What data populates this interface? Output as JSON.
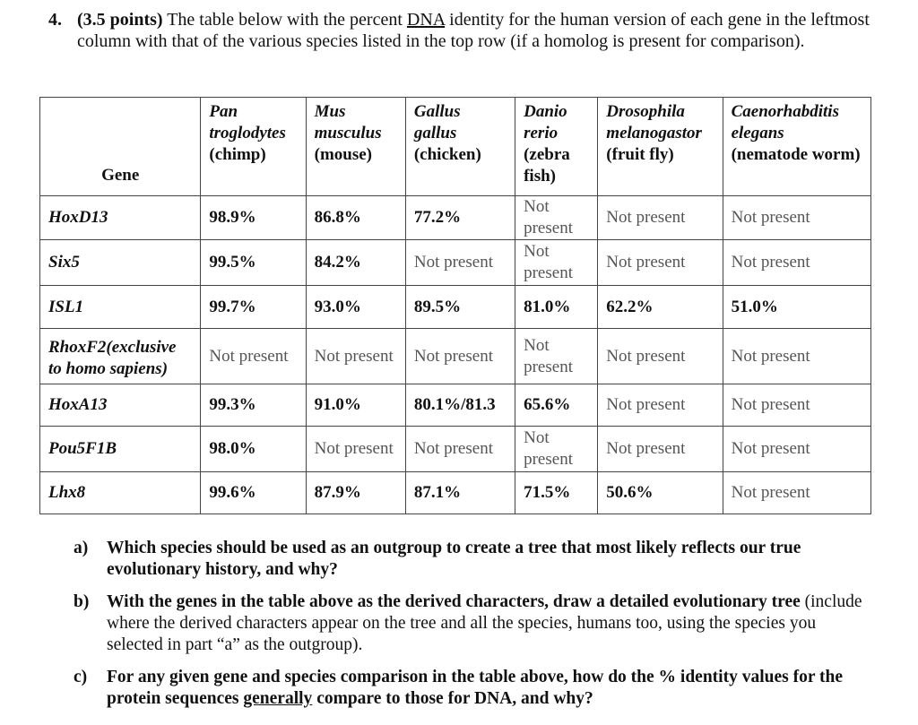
{
  "question": {
    "number": "4.",
    "points": "(3.5 points)",
    "text_before": " The table below with the percent ",
    "underlined": "DNA",
    "text_after": " identity for the human version of each gene in the leftmost column with that of the various species listed in the top row (if a homolog is present for comparison)."
  },
  "table": {
    "gene_header": "Gene",
    "species": [
      {
        "name": "Pan troglodytes",
        "common": "(chimp)"
      },
      {
        "name": "Mus musculus",
        "common": "(mouse)"
      },
      {
        "name": "Gallus gallus",
        "common": "(chicken)"
      },
      {
        "name": "Danio rerio",
        "common": "(zebra fish)"
      },
      {
        "name": "Drosophila melanogastor",
        "common": "(fruit fly)"
      },
      {
        "name": "Caenorhabditis elegans",
        "common": "(nematode worm)"
      }
    ],
    "rows": [
      {
        "gene": "HoxD13",
        "values": [
          "98.9%",
          "86.8%",
          "77.2%",
          "Not present",
          "Not present",
          "Not present"
        ]
      },
      {
        "gene": "Six5",
        "values": [
          "99.5%",
          "84.2%",
          "Not present",
          "Not present",
          "Not present",
          "Not present"
        ]
      },
      {
        "gene": "ISL1",
        "values": [
          "99.7%",
          "93.0%",
          "89.5%",
          "81.0%",
          "62.2%",
          "51.0%"
        ]
      },
      {
        "gene": "RhoxF2(exclusive to homo sapiens)",
        "values": [
          "Not present",
          "Not present",
          "Not present",
          "Not present",
          "Not present",
          "Not present"
        ]
      },
      {
        "gene": "HoxA13",
        "values": [
          "99.3%",
          "91.0%",
          "80.1%/81.3",
          "65.6%",
          "Not present",
          "Not present"
        ]
      },
      {
        "gene": "Pou5F1B",
        "values": [
          "98.0%",
          "Not present",
          "Not present",
          "Not present",
          "Not present",
          "Not present"
        ]
      },
      {
        "gene": "Lhx8",
        "values": [
          "99.6%",
          "87.9%",
          "87.1%",
          "71.5%",
          "50.6%",
          "Not present"
        ]
      }
    ]
  },
  "parts": {
    "a": {
      "label": "a)",
      "bold": "Which species should be used as an outgroup to create a tree that most likely reflects our true evolutionary history, and why?"
    },
    "b": {
      "label": "b)",
      "bold": "With the genes in the table above as the derived characters, draw a detailed evolutionary tree",
      "rest": " (include where the derived characters appear on the tree and all the species, humans too, using the species you selected in part “a” as the outgroup)."
    },
    "c": {
      "label": "c)",
      "bold1": "For any given gene and species comparison in the table above, how do the % identity values for the protein sequences ",
      "underlined": "generally",
      "bold2": " compare to those for DNA, and why?"
    }
  }
}
